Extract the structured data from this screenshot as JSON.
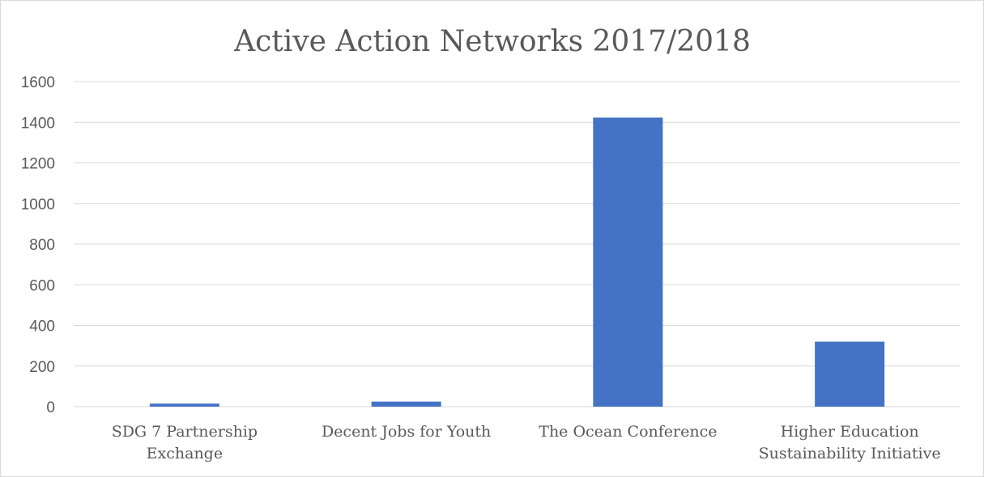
{
  "chart_data": {
    "type": "bar",
    "title": "Active Action Networks 2017/2018",
    "xlabel": "",
    "ylabel": "",
    "categories": [
      [
        "SDG 7 Partnership",
        "Exchange"
      ],
      [
        "Decent Jobs for Youth"
      ],
      [
        "The Ocean Conference"
      ],
      [
        "Higher Education",
        "Sustainability Initiative"
      ]
    ],
    "values": [
      15,
      25,
      1423,
      320
    ],
    "ylim": [
      0,
      1600
    ],
    "yticks": [
      "0",
      "200",
      "400",
      "600",
      "800",
      "1000",
      "1200",
      "1400",
      "1600"
    ],
    "grid": true,
    "legend": "none",
    "bar_color": "#4472c4"
  }
}
